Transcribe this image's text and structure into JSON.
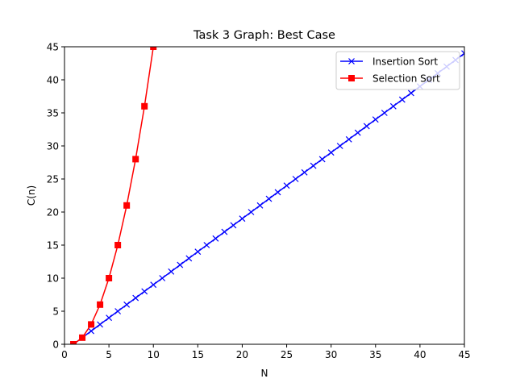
{
  "chart_data": {
    "type": "line",
    "title": "Task 3 Graph: Best Case",
    "xlabel": "N",
    "ylabel": "C(n)",
    "xlim": [
      0,
      45
    ],
    "ylim": [
      0,
      45
    ],
    "xticks": [
      0,
      5,
      10,
      15,
      20,
      25,
      30,
      35,
      40,
      45
    ],
    "yticks": [
      0,
      5,
      10,
      15,
      20,
      25,
      30,
      35,
      40,
      45
    ],
    "grid": false,
    "legend_position": "top-right",
    "series": [
      {
        "name": "Insertion Sort",
        "color": "#0000ff",
        "marker": "x",
        "x": [
          1,
          2,
          3,
          4,
          5,
          6,
          7,
          8,
          9,
          10,
          11,
          12,
          13,
          14,
          15,
          16,
          17,
          18,
          19,
          20,
          21,
          22,
          23,
          24,
          25,
          26,
          27,
          28,
          29,
          30,
          31,
          32,
          33,
          34,
          35,
          36,
          37,
          38,
          39,
          40,
          41,
          42,
          43,
          44,
          45,
          46
        ],
        "y": [
          0,
          1,
          2,
          3,
          4,
          5,
          6,
          7,
          8,
          9,
          10,
          11,
          12,
          13,
          14,
          15,
          16,
          17,
          18,
          19,
          20,
          21,
          22,
          23,
          24,
          25,
          26,
          27,
          28,
          29,
          30,
          31,
          32,
          33,
          34,
          35,
          36,
          37,
          38,
          39,
          40,
          41,
          42,
          43,
          44,
          45
        ]
      },
      {
        "name": "Selection Sort",
        "color": "#ff0000",
        "marker": "square",
        "x": [
          1,
          2,
          3,
          4,
          5,
          6,
          7,
          8,
          9,
          10
        ],
        "y": [
          0,
          1,
          3,
          6,
          10,
          15,
          21,
          28,
          36,
          45
        ]
      }
    ]
  }
}
